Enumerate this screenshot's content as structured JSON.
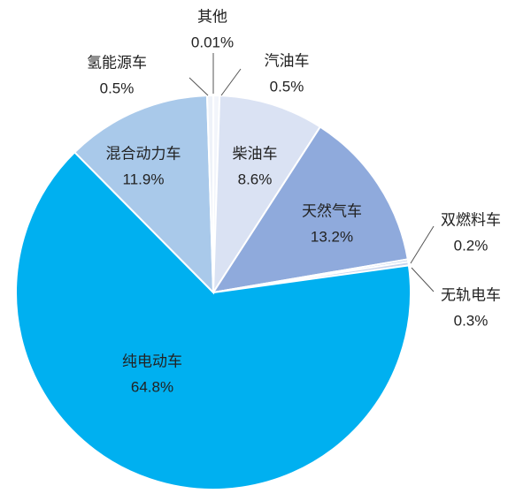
{
  "chart_data": {
    "type": "pie",
    "categories": [
      "其他",
      "汽油车",
      "柴油车",
      "天然气车",
      "双燃料车",
      "无轨电车",
      "纯电动车",
      "混合动力车",
      "氢能源车"
    ],
    "values": [
      0.01,
      0.5,
      8.6,
      13.2,
      0.2,
      0.3,
      64.8,
      11.9,
      0.5
    ],
    "value_labels": [
      "0.01%",
      "0.5%",
      "8.6%",
      "13.2%",
      "0.2%",
      "0.3%",
      "64.8%",
      "11.9%",
      "0.5%"
    ],
    "colors": [
      "#1f3864",
      "#f2f5fb",
      "#dae2f3",
      "#8faadc",
      "#b4c7e7",
      "#c9d6ee",
      "#00b0f0",
      "#a9c9ea",
      "#eef2f9"
    ]
  }
}
